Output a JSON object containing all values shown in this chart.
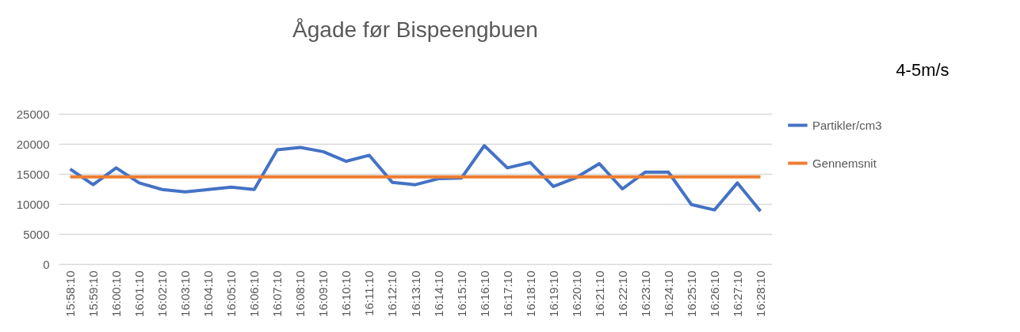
{
  "chart_data": {
    "type": "line",
    "title": "Ågade før Bispeengbuen",
    "categories": [
      "15:58:10",
      "15:59:10",
      "16:00:10",
      "16:01:10",
      "16:02:10",
      "16:03:10",
      "16:04:10",
      "16:05:10",
      "16:06:10",
      "16:07:10",
      "16:08:10",
      "16:09:10",
      "16:10:10",
      "16:11:10",
      "16:12:10",
      "16:13:10",
      "16:14:10",
      "16:15:10",
      "16:16:10",
      "16:17:10",
      "16:18:10",
      "16:19:10",
      "16:20:10",
      "16:21:10",
      "16:22:10",
      "16:23:10",
      "16:24:10",
      "16:25:10",
      "16:26:10",
      "16:27:10",
      "16:28:10"
    ],
    "series": [
      {
        "name": "Partikler/cm3",
        "color": "#4472c4",
        "values": [
          15800,
          13200,
          16000,
          13500,
          12400,
          12000,
          12400,
          12800,
          12400,
          19000,
          19400,
          18700,
          17100,
          18100,
          13600,
          13200,
          14200,
          14300,
          19700,
          16000,
          16900,
          12900,
          14400,
          16700,
          12500,
          15300,
          15300,
          9900,
          9000,
          13500,
          8800
        ]
      },
      {
        "name": "Gennemsnit",
        "color": "#ed7d31",
        "values": [
          14500,
          14500,
          14500,
          14500,
          14500,
          14500,
          14500,
          14500,
          14500,
          14500,
          14500,
          14500,
          14500,
          14500,
          14500,
          14500,
          14500,
          14500,
          14500,
          14500,
          14500,
          14500,
          14500,
          14500,
          14500,
          14500,
          14500,
          14500,
          14500,
          14500,
          14500
        ]
      }
    ],
    "ylim": [
      0,
      25000
    ],
    "yticks": [
      0,
      5000,
      10000,
      15000,
      20000,
      25000
    ],
    "grid": "y",
    "legend": "right",
    "marker": "none",
    "line_style": "solid",
    "annotations": [
      "4-5m/s"
    ]
  }
}
